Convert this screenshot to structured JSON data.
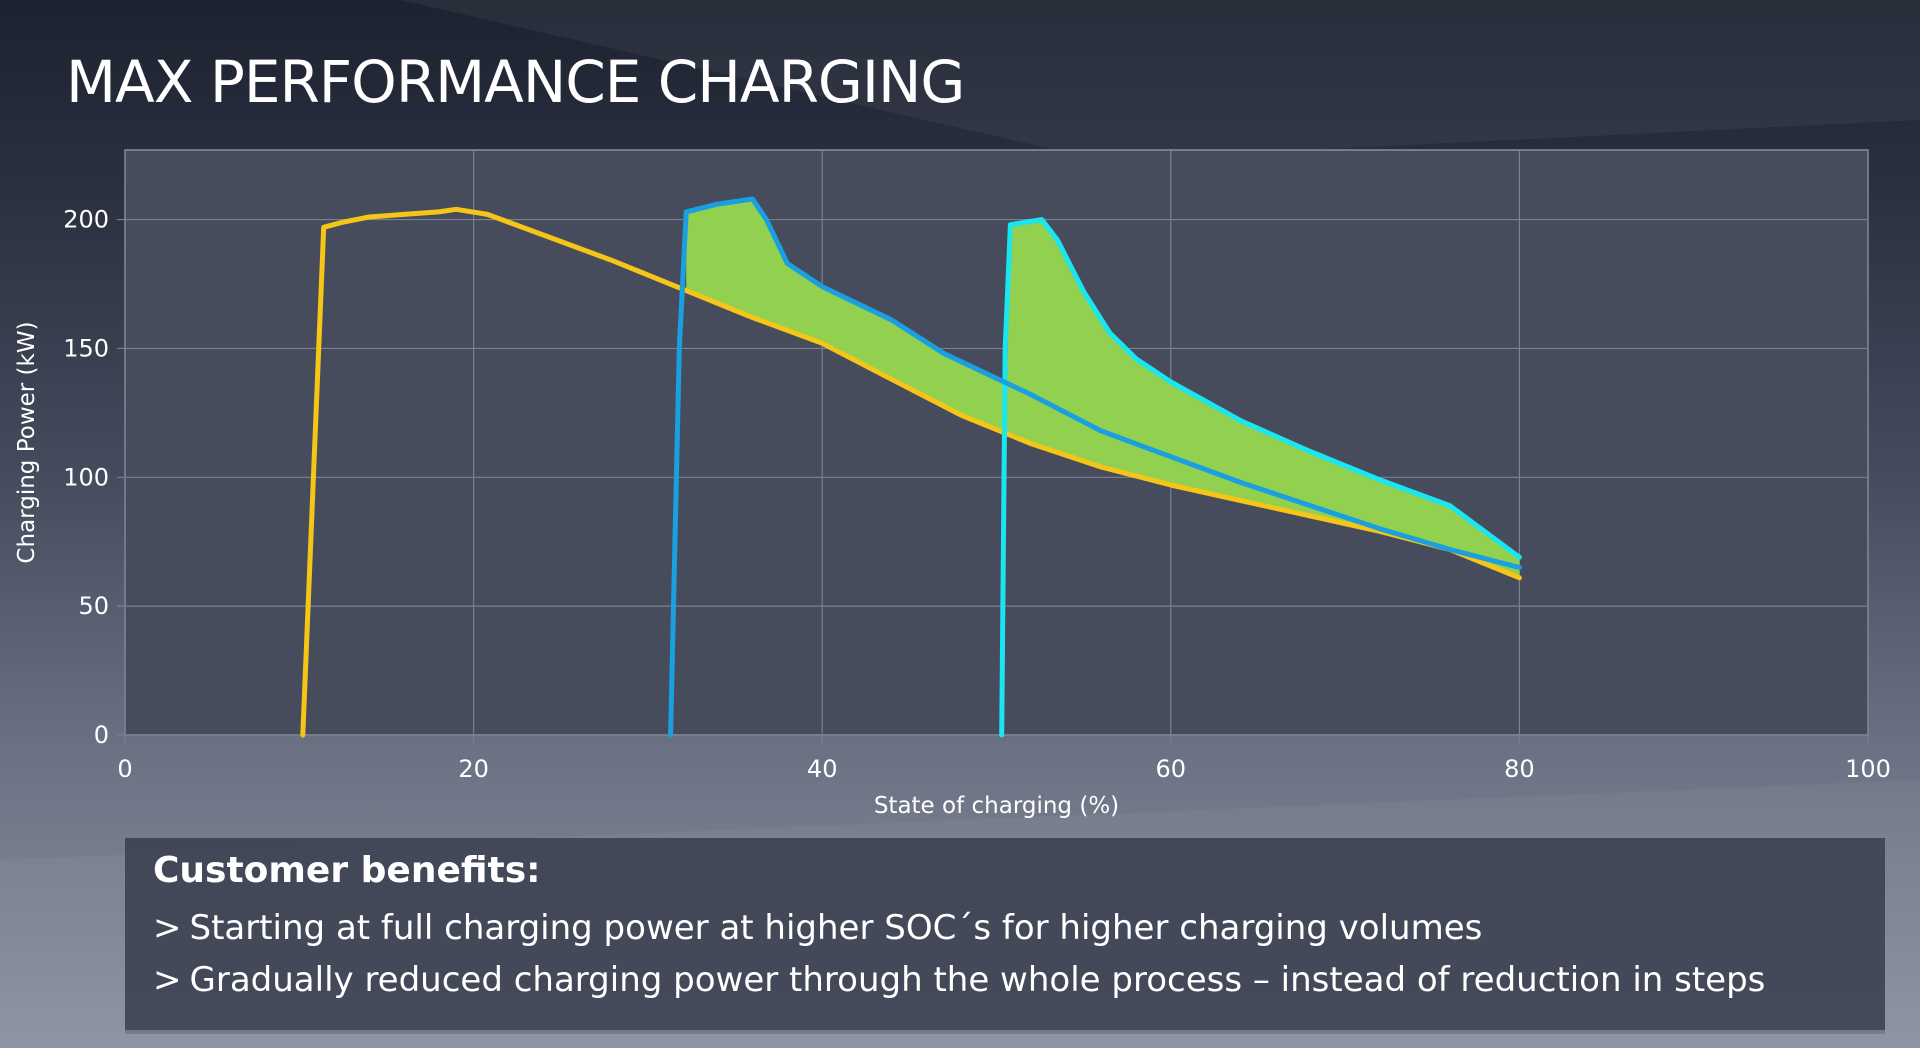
{
  "slide": {
    "title": "MAX PERFORMANCE CHARGING"
  },
  "chart_data": {
    "type": "line",
    "title": "",
    "xlabel": "State of charging (%)",
    "ylabel": "Charging Power (kW)",
    "xlim": [
      0,
      100
    ],
    "ylim": [
      0,
      227
    ],
    "x_ticks": [
      0,
      20,
      40,
      60,
      80,
      100
    ],
    "y_ticks": [
      0,
      50,
      100,
      150,
      200
    ],
    "grid": true,
    "legend": "none",
    "series": [
      {
        "color": "#f5c518",
        "points": [
          [
            10.2,
            0
          ],
          [
            11.4,
            197
          ],
          [
            12.5,
            199
          ],
          [
            14,
            201
          ],
          [
            16,
            202
          ],
          [
            18,
            203
          ],
          [
            19,
            204
          ],
          [
            20.8,
            202
          ],
          [
            24,
            194
          ],
          [
            28,
            184
          ],
          [
            32,
            173
          ],
          [
            36,
            162
          ],
          [
            40,
            152
          ],
          [
            44,
            138
          ],
          [
            48,
            124
          ],
          [
            52,
            113
          ],
          [
            56,
            104
          ],
          [
            60,
            97
          ],
          [
            64,
            91
          ],
          [
            68,
            85
          ],
          [
            72,
            79
          ],
          [
            76,
            72
          ],
          [
            80,
            61
          ]
        ]
      },
      {
        "color": "#1a9fe0",
        "points": [
          [
            31.3,
            0
          ],
          [
            31.8,
            150
          ],
          [
            32.2,
            203
          ],
          [
            34,
            206
          ],
          [
            36,
            208
          ],
          [
            36.8,
            200
          ],
          [
            38,
            183
          ],
          [
            40,
            174
          ],
          [
            44,
            161
          ],
          [
            47,
            148
          ],
          [
            52,
            132
          ],
          [
            56,
            118
          ],
          [
            60,
            108
          ],
          [
            64,
            98
          ],
          [
            68,
            89
          ],
          [
            72,
            80
          ],
          [
            76,
            72
          ],
          [
            80,
            65
          ]
        ]
      },
      {
        "color": "#19e6f0",
        "points": [
          [
            50.3,
            0
          ],
          [
            50.5,
            150
          ],
          [
            50.8,
            198
          ],
          [
            52.6,
            200
          ],
          [
            53.5,
            192
          ],
          [
            55,
            172
          ],
          [
            56.5,
            156
          ],
          [
            58,
            146
          ],
          [
            60,
            137
          ],
          [
            64,
            122
          ],
          [
            68,
            110
          ],
          [
            72,
            99
          ],
          [
            76,
            89
          ],
          [
            80,
            69
          ]
        ]
      }
    ],
    "shaded_regions": [
      {
        "color": "#92d050",
        "between": "upper envelope of the blue and cyan curves and the yellow curve, x 32.2 to 80"
      }
    ]
  },
  "benefits": {
    "heading": "Customer benefits:",
    "chevron": ">",
    "items": [
      "Starting at full charging power at higher SOC´s for higher charging volumes",
      "Gradually reduced charging power through the whole process – instead of reduction in steps"
    ]
  }
}
